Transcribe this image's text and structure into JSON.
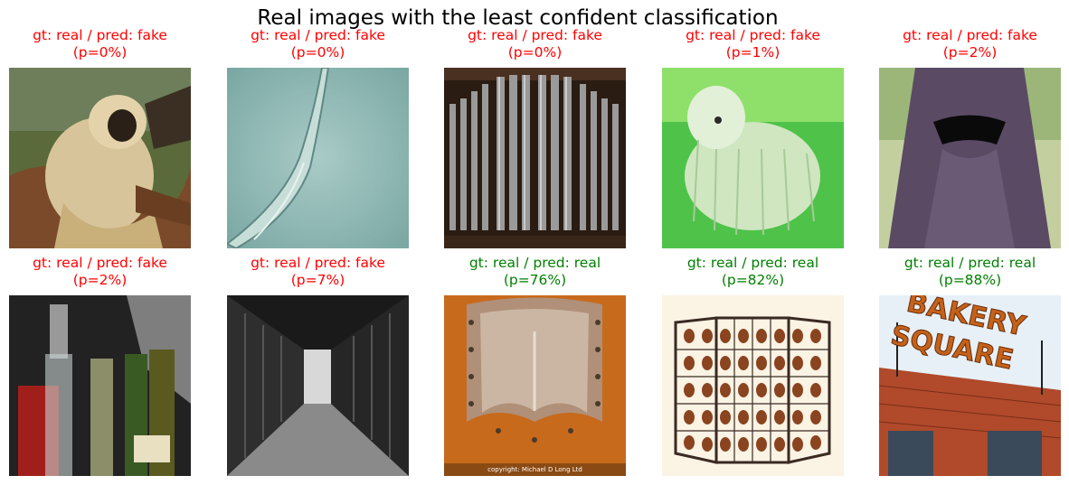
{
  "title": "Real images with the least confident classification",
  "colors": {
    "fake": "#ff0000",
    "real": "#008000"
  },
  "rows": [
    [
      {
        "line1": "gt: real / pred: fake",
        "line2": "(p=0%)",
        "pred": "fake",
        "icon": "gibbon-photo"
      },
      {
        "line1": "gt: real / pred: fake",
        "line2": "(p=0%)",
        "pred": "fake",
        "icon": "nematode-micrograph"
      },
      {
        "line1": "gt: real / pred: fake",
        "line2": "(p=0%)",
        "pred": "fake",
        "icon": "organ-pipes-photo"
      },
      {
        "line1": "gt: real / pred: fake",
        "line2": "(p=1%)",
        "pred": "fake",
        "icon": "komondor-dog-photo"
      },
      {
        "line1": "gt: real / pred: fake",
        "line2": "(p=2%)",
        "pred": "fake",
        "icon": "niqab-photo"
      }
    ],
    [
      {
        "line1": "gt: real / pred: fake",
        "line2": "(p=2%)",
        "pred": "fake",
        "icon": "bottles-photo",
        "image_text": ""
      },
      {
        "line1": "gt: real / pred: fake",
        "line2": "(p=7%)",
        "pred": "fake",
        "icon": "prison-corridor-photo"
      },
      {
        "line1": "gt: real / pred: real",
        "line2": "(p=76%)",
        "pred": "real",
        "icon": "armor-plate-photo",
        "image_text": "copyright: Michael D Long Ltd"
      },
      {
        "line1": "gt: real / pred: real",
        "line2": "(p=82%)",
        "pred": "real",
        "icon": "fire-screen-photo"
      },
      {
        "line1": "gt: real / pred: real",
        "line2": "(p=88%)",
        "pred": "real",
        "icon": "bakery-square-sign-photo",
        "image_text_1": "BAKERY",
        "image_text_2": "SQUARE"
      }
    ]
  ]
}
